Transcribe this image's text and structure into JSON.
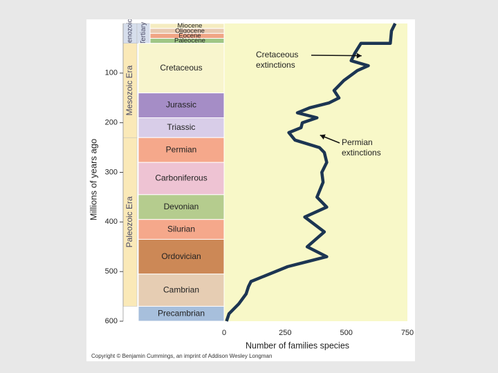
{
  "chart_data": {
    "type": "line",
    "xlabel": "Number of families species",
    "ylabel": "Millions of years ago",
    "xlim": [
      0,
      750
    ],
    "ylim": [
      0,
      600
    ],
    "y_reversed": true,
    "x_ticks": [
      "0",
      "250",
      "500",
      "750"
    ],
    "y_ticks": [
      "100",
      "200",
      "300",
      "400",
      "500",
      "600"
    ],
    "series": [
      {
        "line_color": "#1c3552",
        "points": [
          [
            700,
            0
          ],
          [
            685,
            15
          ],
          [
            680,
            40
          ],
          [
            560,
            40
          ],
          [
            535,
            60
          ],
          [
            520,
            75
          ],
          [
            590,
            85
          ],
          [
            545,
            95
          ],
          [
            490,
            115
          ],
          [
            450,
            135
          ],
          [
            470,
            150
          ],
          [
            430,
            160
          ],
          [
            350,
            170
          ],
          [
            300,
            180
          ],
          [
            380,
            190
          ],
          [
            320,
            200
          ],
          [
            315,
            210
          ],
          [
            265,
            220
          ],
          [
            290,
            235
          ],
          [
            390,
            250
          ],
          [
            410,
            260
          ],
          [
            420,
            280
          ],
          [
            400,
            300
          ],
          [
            405,
            320
          ],
          [
            380,
            350
          ],
          [
            420,
            370
          ],
          [
            330,
            390
          ],
          [
            410,
            420
          ],
          [
            340,
            450
          ],
          [
            420,
            470
          ],
          [
            260,
            490
          ],
          [
            110,
            520
          ],
          [
            100,
            530
          ],
          [
            90,
            545
          ],
          [
            60,
            565
          ],
          [
            20,
            585
          ],
          [
            10,
            600
          ]
        ]
      }
    ],
    "periods": [
      {
        "name": "Miocene",
        "top": 0,
        "bottom": 10,
        "color": "#f5ecc0"
      },
      {
        "name": "Oligocene",
        "top": 10,
        "bottom": 20,
        "color": "#e8c9b0"
      },
      {
        "name": "Eocene",
        "top": 20,
        "bottom": 30,
        "color": "#f0a585"
      },
      {
        "name": "Paleocene",
        "top": 30,
        "bottom": 40,
        "color": "#9fc685"
      },
      {
        "name": "Cretaceous",
        "top": 40,
        "bottom": 140,
        "color": "#f8f5cd"
      },
      {
        "name": "Jurassic",
        "top": 140,
        "bottom": 190,
        "color": "#a58dc6"
      },
      {
        "name": "Triassic",
        "top": 190,
        "bottom": 230,
        "color": "#d8cde8"
      },
      {
        "name": "Permian",
        "top": 230,
        "bottom": 280,
        "color": "#f5a88b"
      },
      {
        "name": "Carboniferous",
        "top": 280,
        "bottom": 345,
        "color": "#eec3d3"
      },
      {
        "name": "Devonian",
        "top": 345,
        "bottom": 395,
        "color": "#b5cc8e"
      },
      {
        "name": "Silurian",
        "top": 395,
        "bottom": 435,
        "color": "#f5a88b"
      },
      {
        "name": "Ordovician",
        "top": 435,
        "bottom": 505,
        "color": "#cc8856"
      },
      {
        "name": "Cambrian",
        "top": 505,
        "bottom": 570,
        "color": "#e6cdb3"
      },
      {
        "name": "Precambrian",
        "top": 570,
        "bottom": 600,
        "color": "#a7bfdc"
      }
    ],
    "eras": [
      {
        "name": "Cenozoic",
        "top": 0,
        "bottom": 40,
        "color": "#d6deec"
      },
      {
        "name": "Mesozoic Era",
        "top": 40,
        "bottom": 230,
        "color": "#fae9b8"
      },
      {
        "name": "Paleozoic Era",
        "top": 230,
        "bottom": 570,
        "color": "#fae9b8"
      }
    ],
    "subera": {
      "name": "Tertiary",
      "top": 0,
      "bottom": 40,
      "color": "#d6deec"
    },
    "annotations": [
      {
        "text": [
          "Cretaceous",
          "extinctions"
        ],
        "points_to": [
          540,
          65
        ]
      },
      {
        "text": [
          "Permian",
          "extinctions"
        ],
        "points_to": [
          370,
          225
        ]
      }
    ]
  },
  "colors": {
    "plot_background": "#f8f8c8",
    "line": "#1c3552",
    "text": "#222222"
  },
  "copyright": "Copyright © Benjamin Cummings, an imprint of Addison Wesley Longman"
}
